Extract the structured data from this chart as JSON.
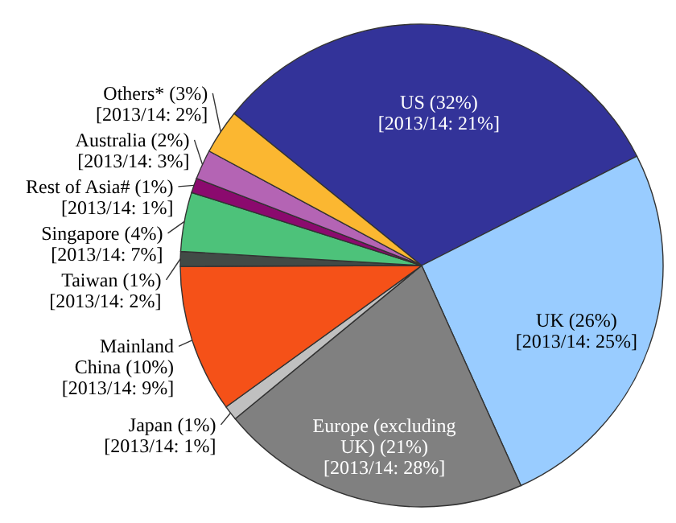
{
  "chart_data": {
    "type": "pie",
    "categories": [
      "US",
      "UK",
      "Europe (excluding UK)",
      "Japan",
      "Mainland China",
      "Taiwan",
      "Singapore",
      "Rest of Asia#",
      "Australia",
      "Others*"
    ],
    "values": [
      32,
      26,
      21,
      1,
      10,
      1,
      4,
      1,
      2,
      3
    ],
    "colors": [
      "#333399",
      "#99ccff",
      "#808080",
      "#c0c0c0",
      "#f55118",
      "#424a46",
      "#4dc27a",
      "#8b0a6e",
      "#b464b4",
      "#fbb731"
    ],
    "value_labels": [
      "(32%) [2013/14: 21%]",
      "(26%) [2013/14: 25%]",
      "(21%) [2013/14: 28%]",
      "(1%) [2013/14: 1%]",
      "(10%) [2013/14: 9%]",
      "(1%) [2013/14: 2%]",
      "(4%) [2013/14: 7%]",
      "(1%) [2013/14: 1%]",
      "(2%) [2013/14: 3%]",
      "(3%) [2013/14: 2%]"
    ]
  }
}
